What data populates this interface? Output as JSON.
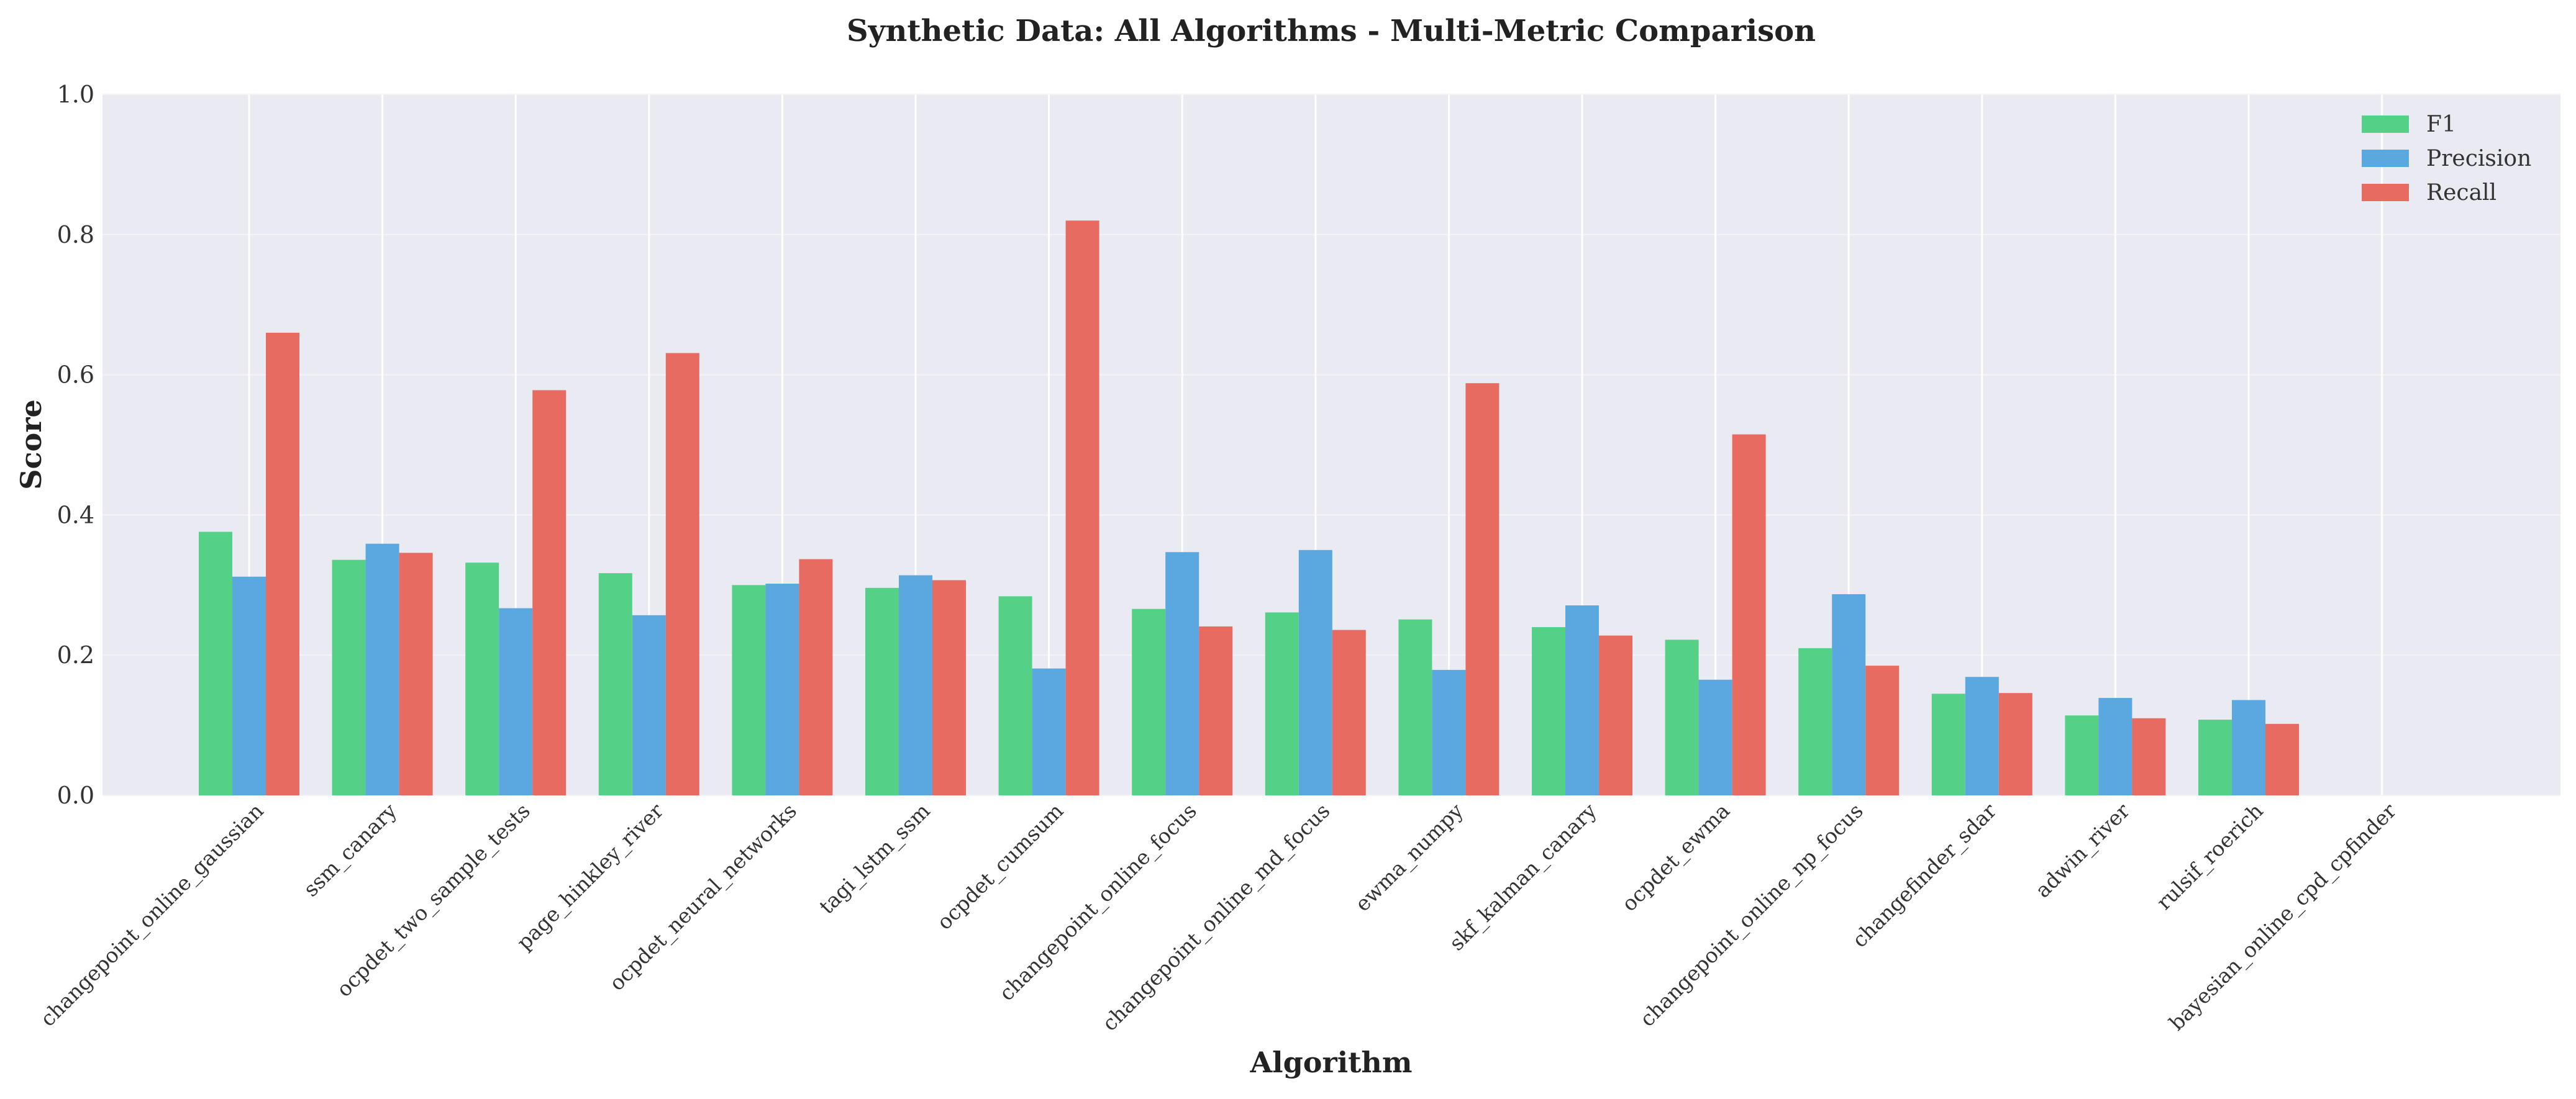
{
  "chart_data": {
    "type": "bar",
    "title": "Synthetic Data: All Algorithms - Multi-Metric Comparison",
    "xlabel": "Algorithm",
    "ylabel": "Score",
    "ylim": [
      0,
      1.0
    ],
    "yticks": [
      "0.0",
      "0.2",
      "0.4",
      "0.6",
      "0.8",
      "1.0"
    ],
    "grid": true,
    "legend_position": "top-right",
    "categories": [
      "changepoint_online_gaussian",
      "ssm_canary",
      "ocpdet_two_sample_tests",
      "page_hinkley_river",
      "ocpdet_neural_networks",
      "tagi_lstm_ssm",
      "ocpdet_cumsum",
      "changepoint_online_focus",
      "changepoint_online_md_focus",
      "ewma_numpy",
      "skf_kalman_canary",
      "ocpdet_ewma",
      "changepoint_online_np_focus",
      "changefinder_sdar",
      "adwin_river",
      "rulsif_roerich",
      "bayesian_online_cpd_cpfinder"
    ],
    "series": [
      {
        "name": "F1",
        "color": "#55d187",
        "values": [
          0.376,
          0.336,
          0.332,
          0.317,
          0.3,
          0.296,
          0.284,
          0.266,
          0.261,
          0.251,
          0.24,
          0.222,
          0.21,
          0.145,
          0.114,
          0.108,
          0.0
        ]
      },
      {
        "name": "Precision",
        "color": "#5aa8df",
        "values": [
          0.312,
          0.359,
          0.267,
          0.257,
          0.302,
          0.314,
          0.181,
          0.347,
          0.35,
          0.179,
          0.271,
          0.165,
          0.287,
          0.169,
          0.139,
          0.136,
          0.0
        ]
      },
      {
        "name": "Recall",
        "color": "#e86b62",
        "values": [
          0.66,
          0.346,
          0.578,
          0.631,
          0.337,
          0.307,
          0.82,
          0.241,
          0.236,
          0.588,
          0.228,
          0.515,
          0.185,
          0.146,
          0.11,
          0.102,
          0.0
        ]
      }
    ]
  }
}
